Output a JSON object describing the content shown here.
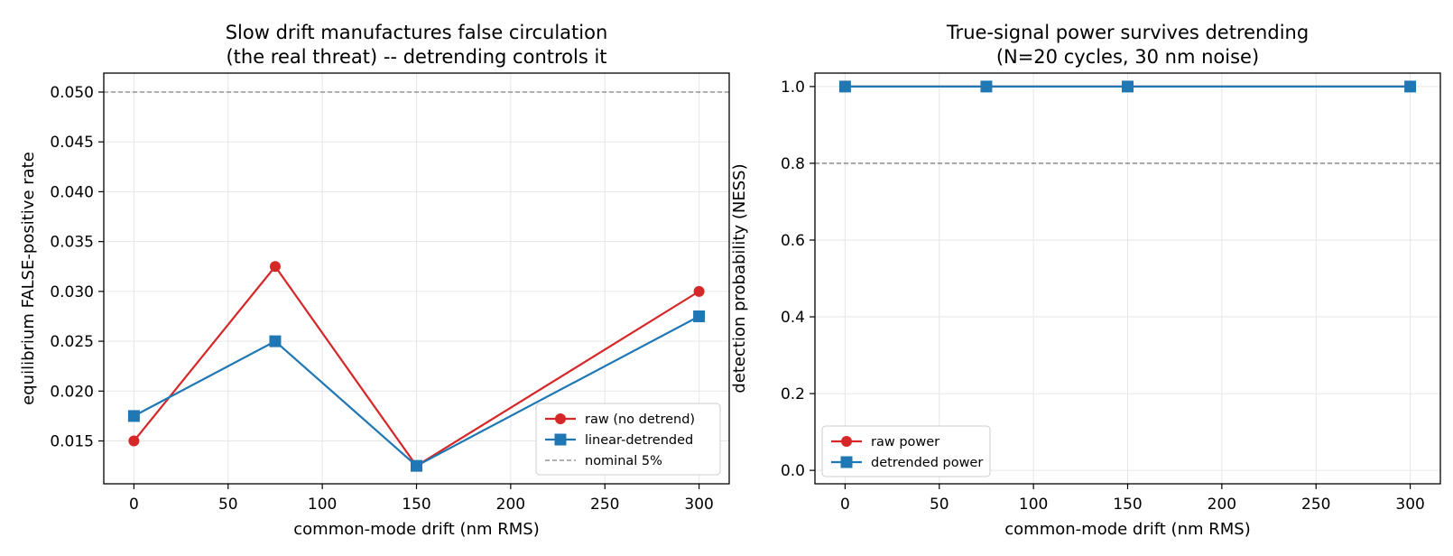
{
  "colors": {
    "raw": "#d62728",
    "detrended": "#1f77b4",
    "reference": "#808080",
    "grid": "#e6e6e6"
  },
  "chart_data": [
    {
      "type": "line",
      "title": "Slow drift manufactures false circulation\n(the real threat) -- detrending controls it",
      "xlabel": "common-mode drift (nm RMS)",
      "ylabel": "equilibrium FALSE-positive rate",
      "x": [
        0,
        75,
        150,
        300
      ],
      "xlim": [
        -16,
        316
      ],
      "ylim": [
        0.0107,
        0.0519
      ],
      "xticks": [
        0,
        50,
        100,
        150,
        200,
        250,
        300
      ],
      "yticks": [
        0.015,
        0.02,
        0.025,
        0.03,
        0.035,
        0.04,
        0.045,
        0.05
      ],
      "ytick_labels": [
        "0.015",
        "0.020",
        "0.025",
        "0.030",
        "0.035",
        "0.040",
        "0.045",
        "0.050"
      ],
      "grid": true,
      "series": [
        {
          "name": "raw (no detrend)",
          "values": [
            0.015,
            0.0325,
            0.0125,
            0.03
          ],
          "marker": "circle",
          "color": "#d62728"
        },
        {
          "name": "linear-detrended",
          "values": [
            0.0175,
            0.025,
            0.0125,
            0.0275
          ],
          "marker": "square",
          "color": "#1f77b4"
        }
      ],
      "reference_line": {
        "name": "nominal 5%",
        "y": 0.05
      },
      "legend": {
        "placement": "lower right"
      }
    },
    {
      "type": "line",
      "title": "True-signal power survives detrending\n(N=20 cycles, 30 nm noise)",
      "xlabel": "common-mode drift (nm RMS)",
      "ylabel": "detection probability (NESS)",
      "x": [
        0,
        75,
        150,
        300
      ],
      "xlim": [
        -16,
        316
      ],
      "ylim": [
        -0.035,
        1.035
      ],
      "xticks": [
        0,
        50,
        100,
        150,
        200,
        250,
        300
      ],
      "yticks": [
        0,
        0.2,
        0.4,
        0.6,
        0.8,
        1
      ],
      "ytick_labels": [
        "0.0",
        "0.2",
        "0.4",
        "0.6",
        "0.8",
        "1.0"
      ],
      "grid": true,
      "series": [
        {
          "name": "raw power",
          "values": [
            1.0,
            1.0,
            1.0,
            1.0
          ],
          "marker": "circle",
          "color": "#d62728"
        },
        {
          "name": "detrended power",
          "values": [
            1.0,
            1.0,
            1.0,
            1.0
          ],
          "marker": "square",
          "color": "#1f77b4"
        }
      ],
      "reference_line": {
        "name": "",
        "y": 0.8
      },
      "legend": {
        "placement": "lower left"
      }
    }
  ]
}
